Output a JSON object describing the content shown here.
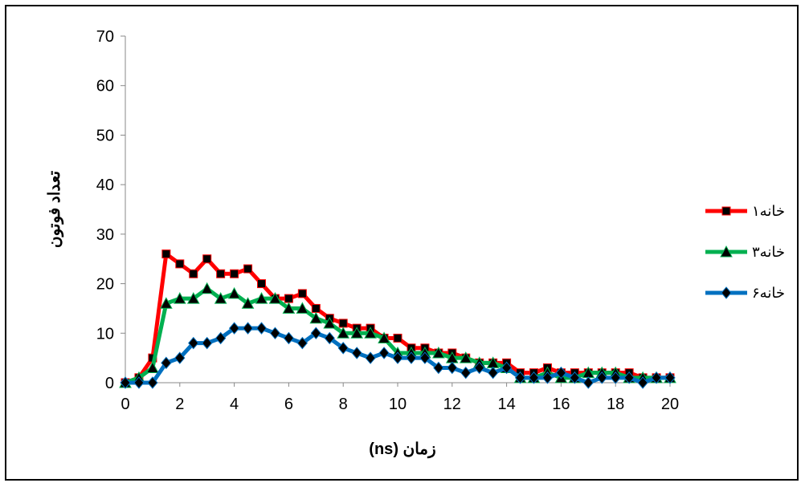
{
  "chart_data": {
    "type": "line",
    "xlabel": "زمان (ns)",
    "ylabel": "تعداد فوتون",
    "xlim": [
      0,
      20
    ],
    "ylim": [
      0,
      70
    ],
    "xticks": [
      0,
      2,
      4,
      6,
      8,
      10,
      12,
      14,
      16,
      18,
      20
    ],
    "yticks": [
      0,
      10,
      20,
      30,
      40,
      50,
      60,
      70
    ],
    "grid": false,
    "legend_position": "right",
    "series": [
      {
        "name": "خانه۱",
        "color": "#ff0000",
        "marker": "square",
        "points": [
          [
            0,
            0
          ],
          [
            0.5,
            1
          ],
          [
            1,
            5
          ],
          [
            1.5,
            26
          ],
          [
            2,
            24
          ],
          [
            2.5,
            22
          ],
          [
            3,
            25
          ],
          [
            3.5,
            22
          ],
          [
            4,
            22
          ],
          [
            4.5,
            23
          ],
          [
            5,
            20
          ],
          [
            5.5,
            17
          ],
          [
            6,
            17
          ],
          [
            6.5,
            18
          ],
          [
            7,
            15
          ],
          [
            7.5,
            13
          ],
          [
            8,
            12
          ],
          [
            8.5,
            11
          ],
          [
            9,
            11
          ],
          [
            9.5,
            9
          ],
          [
            10,
            9
          ],
          [
            10.5,
            7
          ],
          [
            11,
            7
          ],
          [
            11.5,
            6
          ],
          [
            12,
            6
          ],
          [
            12.5,
            5
          ],
          [
            13,
            4
          ],
          [
            13.5,
            4
          ],
          [
            14,
            4
          ],
          [
            14.5,
            2
          ],
          [
            15,
            2
          ],
          [
            15.5,
            3
          ],
          [
            16,
            2
          ],
          [
            16.5,
            2
          ],
          [
            17,
            2
          ],
          [
            17.5,
            2
          ],
          [
            18,
            2
          ],
          [
            18.5,
            2
          ],
          [
            19,
            1
          ],
          [
            19.5,
            1
          ],
          [
            20,
            1
          ]
        ]
      },
      {
        "name": "خانه۳",
        "color": "#00b050",
        "marker": "triangle",
        "points": [
          [
            0,
            0
          ],
          [
            0.5,
            1
          ],
          [
            1,
            3
          ],
          [
            1.5,
            16
          ],
          [
            2,
            17
          ],
          [
            2.5,
            17
          ],
          [
            3,
            19
          ],
          [
            3.5,
            17
          ],
          [
            4,
            18
          ],
          [
            4.5,
            16
          ],
          [
            5,
            17
          ],
          [
            5.5,
            17
          ],
          [
            6,
            15
          ],
          [
            6.5,
            15
          ],
          [
            7,
            13
          ],
          [
            7.5,
            12
          ],
          [
            8,
            10
          ],
          [
            8.5,
            10
          ],
          [
            9,
            10
          ],
          [
            9.5,
            9
          ],
          [
            10,
            6
          ],
          [
            10.5,
            6
          ],
          [
            11,
            6
          ],
          [
            11.5,
            6
          ],
          [
            12,
            5
          ],
          [
            12.5,
            5
          ],
          [
            13,
            4
          ],
          [
            13.5,
            4
          ],
          [
            14,
            3
          ],
          [
            14.5,
            1
          ],
          [
            15,
            1
          ],
          [
            15.5,
            2
          ],
          [
            16,
            1
          ],
          [
            16.5,
            1
          ],
          [
            17,
            2
          ],
          [
            17.5,
            2
          ],
          [
            18,
            2
          ],
          [
            18.5,
            1
          ],
          [
            19,
            1
          ],
          [
            19.5,
            1
          ],
          [
            20,
            1
          ]
        ]
      },
      {
        "name": "خانه۶",
        "color": "#0070c0",
        "marker": "diamond",
        "points": [
          [
            0,
            0
          ],
          [
            0.5,
            0
          ],
          [
            1,
            0
          ],
          [
            1.5,
            4
          ],
          [
            2,
            5
          ],
          [
            2.5,
            8
          ],
          [
            3,
            8
          ],
          [
            3.5,
            9
          ],
          [
            4,
            11
          ],
          [
            4.5,
            11
          ],
          [
            5,
            11
          ],
          [
            5.5,
            10
          ],
          [
            6,
            9
          ],
          [
            6.5,
            8
          ],
          [
            7,
            10
          ],
          [
            7.5,
            9
          ],
          [
            8,
            7
          ],
          [
            8.5,
            6
          ],
          [
            9,
            5
          ],
          [
            9.5,
            6
          ],
          [
            10,
            5
          ],
          [
            10.5,
            5
          ],
          [
            11,
            5
          ],
          [
            11.5,
            3
          ],
          [
            12,
            3
          ],
          [
            12.5,
            2
          ],
          [
            13,
            3
          ],
          [
            13.5,
            2
          ],
          [
            14,
            3
          ],
          [
            14.5,
            1
          ],
          [
            15,
            1
          ],
          [
            15.5,
            1
          ],
          [
            16,
            2
          ],
          [
            16.5,
            1
          ],
          [
            17,
            0
          ],
          [
            17.5,
            1
          ],
          [
            18,
            1
          ],
          [
            18.5,
            1
          ],
          [
            19,
            0
          ],
          [
            19.5,
            1
          ],
          [
            20,
            1
          ]
        ]
      }
    ]
  }
}
